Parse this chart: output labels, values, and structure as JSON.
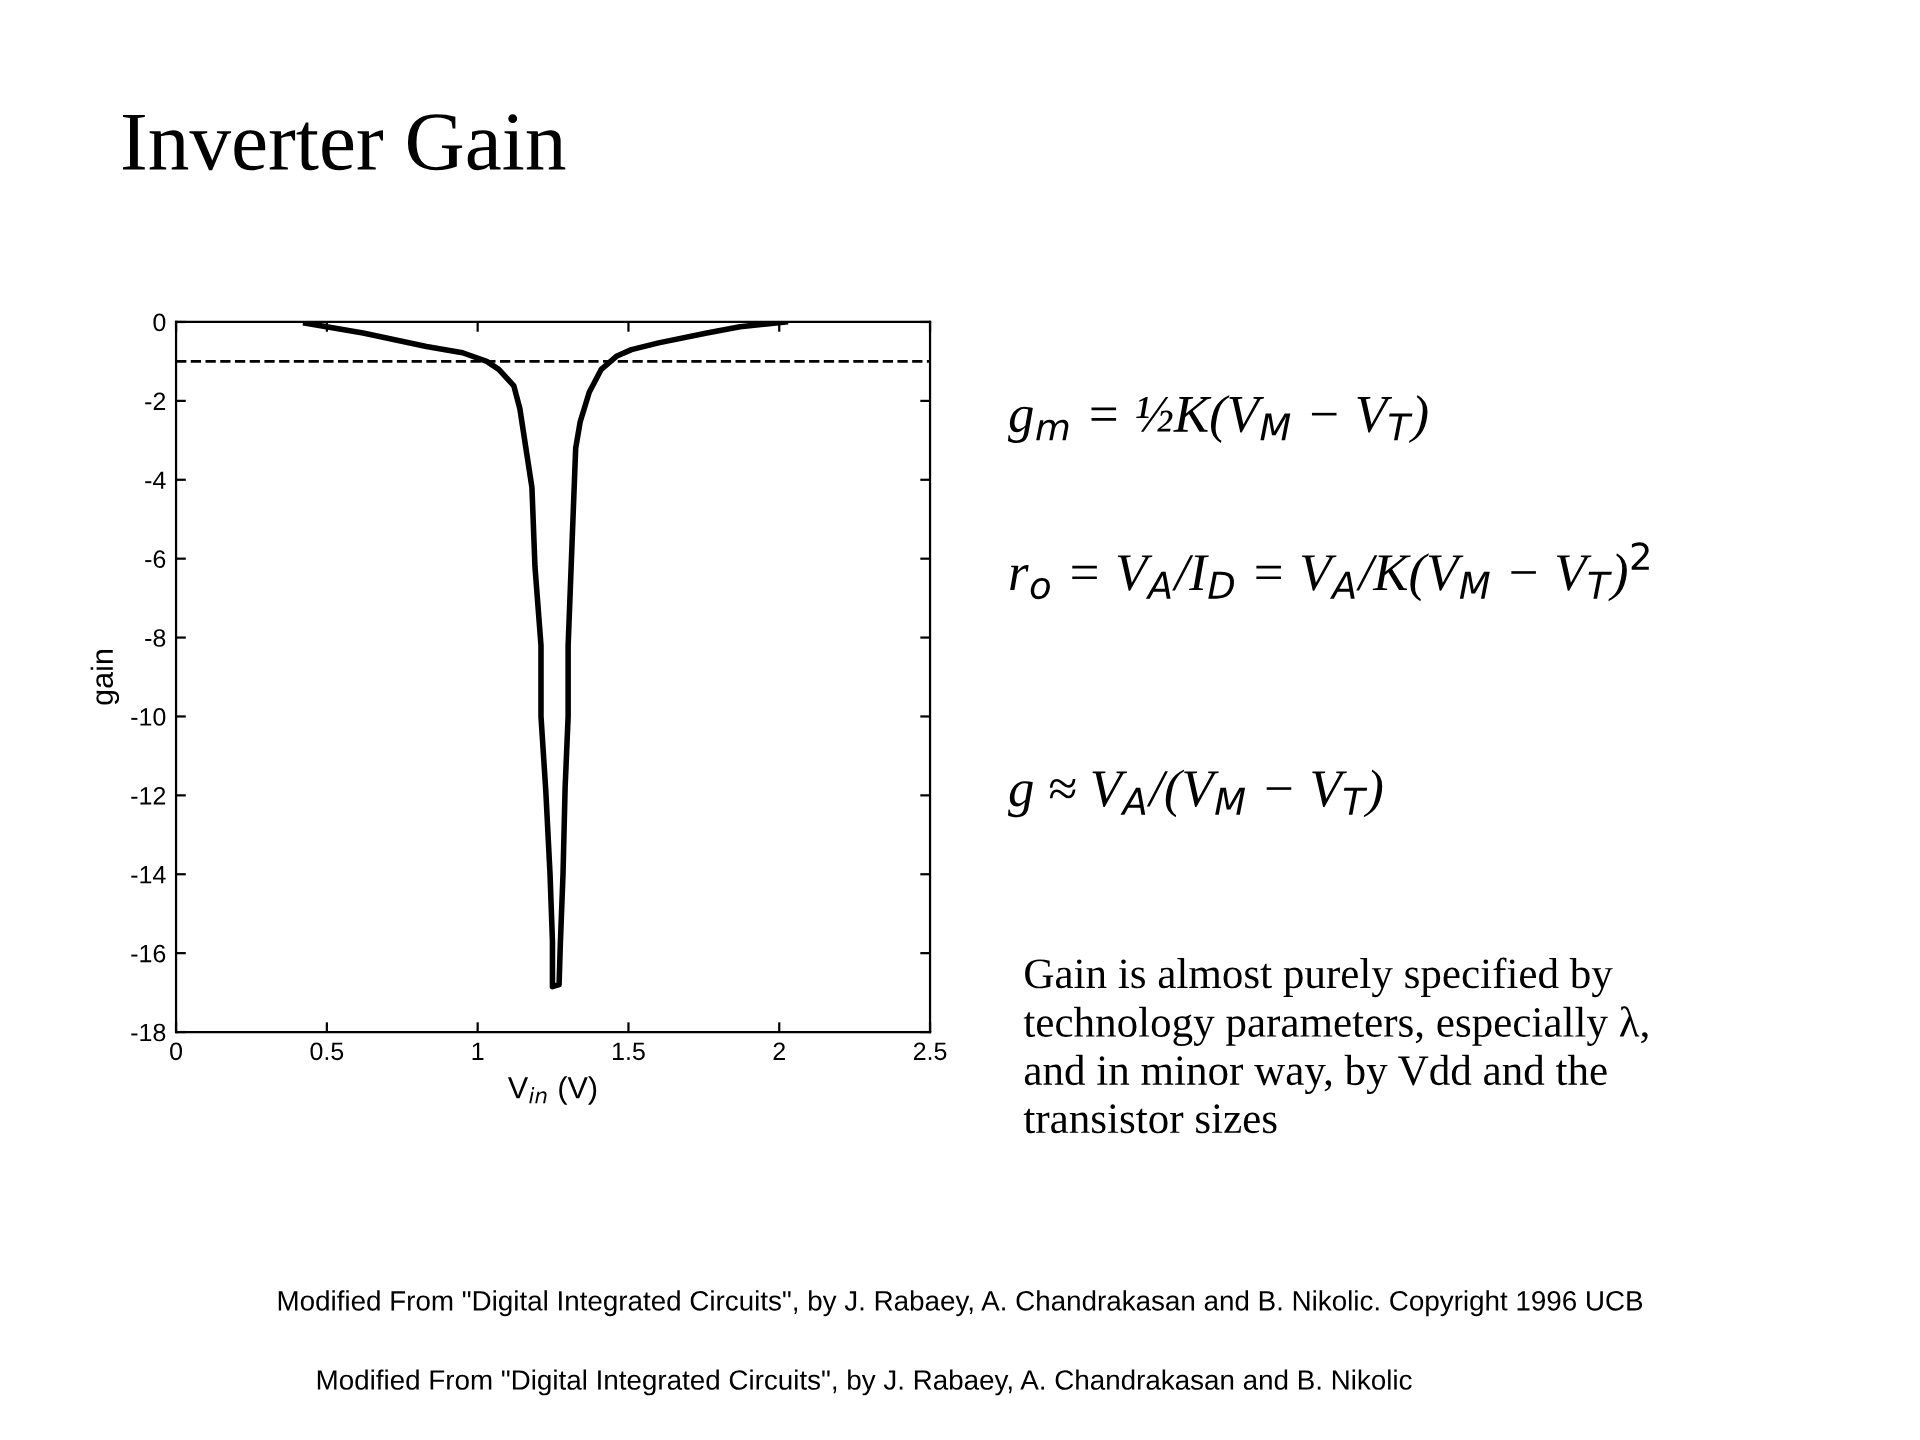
{
  "chart_data": {
    "type": "line",
    "title": "Inverter Gain",
    "xlabel": "V$_{in}$ (V)",
    "ylabel": "gain",
    "series": [
      {
        "color": "#000000",
        "x": [
          0.43,
          0.62,
          0.83,
          0.95,
          1.03,
          1.07,
          1.12,
          1.14,
          1.16,
          1.18,
          1.19,
          1.21,
          1.21,
          1.226,
          1.24,
          1.248,
          1.248,
          1.27,
          1.274,
          1.283,
          1.29,
          1.3,
          1.3,
          1.31,
          1.325,
          1.34,
          1.37,
          1.41,
          1.46,
          1.51,
          1.6,
          1.76,
          1.87,
          2.02
        ],
        "values": [
          -0.03,
          -0.28,
          -0.62,
          -0.78,
          -1.0,
          -1.2,
          -1.62,
          -2.2,
          -3.2,
          -4.2,
          -6.2,
          -8.2,
          -10,
          -11.9,
          -14,
          -15.7,
          -16.85,
          -16.8,
          -15.8,
          -14,
          -11.8,
          -10,
          -8.2,
          -6.2,
          -3.2,
          -2.53,
          -1.78,
          -1.2,
          -0.87,
          -0.7,
          -0.53,
          -0.28,
          -0.12,
          0
        ]
      }
    ],
    "xlim": [
      0,
      2.5
    ],
    "ylim": [
      -18,
      0
    ],
    "xticks": [
      0,
      0.5,
      1,
      1.5,
      2,
      2.5
    ],
    "yticks": [
      -18,
      -16,
      -14,
      -12,
      -10,
      -8,
      -6,
      -4,
      -2,
      0
    ],
    "grid": false,
    "marker": "none",
    "line_style": "solid",
    "ref_lines": [
      {
        "axis": "y",
        "value": -1,
        "line_style": "dashed",
        "color": "#000000"
      }
    ],
    "annotations": [
      "g$_{m}$ = ½K(V$_{M}$ − V$_{T}$)",
      "r$_{o}$ = V$_{A}$/I$_{D}$ = V$_{A}$/K(V$_{M}$ − V$_{T}$)$^{2}$",
      "g ≈ V$_{A}$/(V$_{M}$ − V$_{T}$)",
      "Gain is almost purely specified by\ntechnology parameters, especially λ,\nand in minor way, by Vdd and the\ntransistor sizes",
      "Modified From \"Digital Integrated Circuits\", by J. Rabaey, A. Chandrakasan and B. Nikolic. Copyright 1996 UCB",
      "Modified From \"Digital Integrated Circuits\", by J. Rabaey, A. Chandrakasan and B. Nikolic"
    ]
  }
}
